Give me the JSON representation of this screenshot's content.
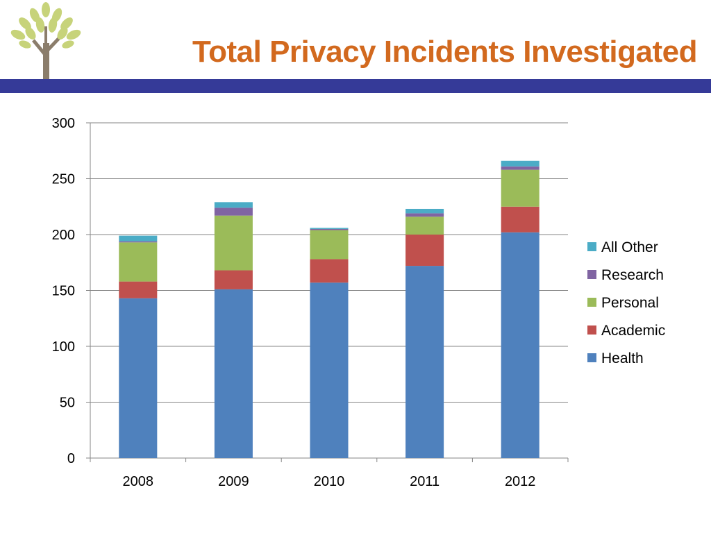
{
  "slide": {
    "title": "Total Privacy Incidents Investigated",
    "band_color": "#353a98",
    "title_color": "#d2691e"
  },
  "logo": {
    "icon": "tree-icon"
  },
  "chart_data": {
    "type": "bar",
    "stacked": true,
    "categories": [
      "2008",
      "2009",
      "2010",
      "2011",
      "2012"
    ],
    "series": [
      {
        "name": "Health",
        "color": "#4f81bd",
        "values": [
          143,
          151,
          157,
          172,
          202
        ]
      },
      {
        "name": "Academic",
        "color": "#c0504d",
        "values": [
          15,
          17,
          21,
          28,
          23
        ]
      },
      {
        "name": "Personal",
        "color": "#9bbb59",
        "values": [
          35,
          49,
          26,
          16,
          33
        ]
      },
      {
        "name": "Research",
        "color": "#8064a2",
        "values": [
          1,
          7,
          1,
          3,
          3
        ]
      },
      {
        "name": "All Other",
        "color": "#4bacc6",
        "values": [
          5,
          5,
          1,
          4,
          5
        ]
      }
    ],
    "title": "",
    "xlabel": "",
    "ylabel": "",
    "ylim": [
      0,
      300
    ],
    "yticks": [
      "0",
      "50",
      "100",
      "150",
      "200",
      "250",
      "300"
    ],
    "grid": true,
    "legend_position": "right",
    "legend_order": [
      "All Other",
      "Research",
      "Personal",
      "Academic",
      "Health"
    ]
  }
}
